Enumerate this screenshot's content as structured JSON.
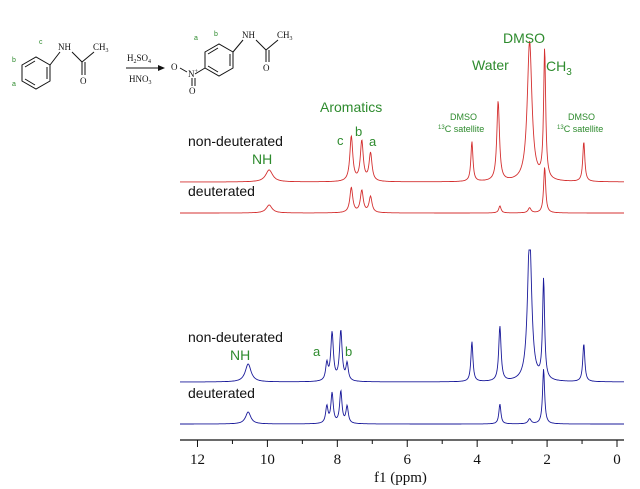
{
  "scheme": {
    "reagent_top": "H",
    "reagent_top_sub": "2",
    "reagent_top_main": "SO",
    "reagent_top_sub2": "4",
    "reagent_bottom_main": "HNO",
    "reagent_bottom_sub": "3",
    "reactant_nh": "NH",
    "reactant_ch3": "CH",
    "reactant_ch3_sub": "3",
    "reactant_o": "O",
    "product_nh": "NH",
    "product_ch3": "CH",
    "product_ch3_sub": "3",
    "product_o": "O",
    "product_no2_o": "O",
    "product_no2_n": "N",
    "product_no2_plus": "+",
    "product_no2_o2": "O",
    "label_a": "a",
    "label_b": "b",
    "label_c": "c"
  },
  "chart_data": {
    "type": "line",
    "xlabel": "f1 (ppm)",
    "xlim": [
      12.5,
      -0.2
    ],
    "x_reversed": true,
    "xticks": [
      12,
      10,
      8,
      6,
      4,
      2,
      0
    ],
    "grid": false,
    "colors": {
      "acetanilide": "#d43030",
      "nitroacetanilide": "#1a1a9a"
    },
    "panels": [
      {
        "compound": "acetanilide",
        "traces": [
          {
            "name": "non-deuterated",
            "peaks": [
              {
                "ppm": 9.95,
                "height": 12,
                "width": 0.12
              },
              {
                "ppm": 7.6,
                "height": 45,
                "width": 0.05
              },
              {
                "ppm": 7.3,
                "height": 40,
                "width": 0.05
              },
              {
                "ppm": 7.05,
                "height": 28,
                "width": 0.05
              },
              {
                "ppm": 4.15,
                "height": 40,
                "width": 0.035
              },
              {
                "ppm": 3.4,
                "height": 80,
                "width": 0.045
              },
              {
                "ppm": 2.5,
                "height": 140,
                "width": 0.08
              },
              {
                "ppm": 2.07,
                "height": 130,
                "width": 0.035
              },
              {
                "ppm": 0.95,
                "height": 40,
                "width": 0.035
              }
            ]
          },
          {
            "name": "deuterated",
            "peaks": [
              {
                "ppm": 9.95,
                "height": 8,
                "width": 0.1
              },
              {
                "ppm": 7.6,
                "height": 25,
                "width": 0.05
              },
              {
                "ppm": 7.3,
                "height": 22,
                "width": 0.05
              },
              {
                "ppm": 7.05,
                "height": 16,
                "width": 0.05
              },
              {
                "ppm": 3.35,
                "height": 7,
                "width": 0.04
              },
              {
                "ppm": 2.5,
                "height": 5,
                "width": 0.05
              },
              {
                "ppm": 2.07,
                "height": 46,
                "width": 0.035
              }
            ]
          }
        ],
        "annotations": {
          "trace_labels": [
            "non-deuterated",
            "deuterated"
          ],
          "peak_labels": [
            {
              "text": "NH",
              "ppm": 9.95
            },
            {
              "text": "Aromatics",
              "ppm": 7.35
            },
            {
              "text": "c",
              "ppm": 7.7
            },
            {
              "text": "b",
              "ppm": 7.3
            },
            {
              "text": "a",
              "ppm": 6.95
            },
            {
              "text": "DMSO",
              "ppm": 4.15,
              "sup": "13",
              "line2": "C satellite"
            },
            {
              "text": "Water",
              "ppm": 3.4
            },
            {
              "text": "DMSO",
              "ppm": 2.5
            },
            {
              "text": "CH",
              "sub": "3",
              "ppm": 1.95
            },
            {
              "text": "DMSO",
              "ppm": 0.95,
              "sup": "13",
              "line2": "C satellite"
            }
          ]
        }
      },
      {
        "compound": "nitroacetanilide",
        "traces": [
          {
            "name": "non-deuterated",
            "peaks": [
              {
                "ppm": 10.55,
                "height": 18,
                "width": 0.1
              },
              {
                "ppm": 8.3,
                "height": 17,
                "width": 0.04
              },
              {
                "ppm": 8.15,
                "height": 48,
                "width": 0.045
              },
              {
                "ppm": 7.9,
                "height": 50,
                "width": 0.045
              },
              {
                "ppm": 7.72,
                "height": 17,
                "width": 0.04
              },
              {
                "ppm": 4.15,
                "height": 40,
                "width": 0.035
              },
              {
                "ppm": 3.35,
                "height": 55,
                "width": 0.04
              },
              {
                "ppm": 2.5,
                "height": 150,
                "width": 0.07
              },
              {
                "ppm": 2.1,
                "height": 100,
                "width": 0.035
              },
              {
                "ppm": 0.95,
                "height": 38,
                "width": 0.035
              }
            ]
          },
          {
            "name": "deuterated",
            "peaks": [
              {
                "ppm": 10.55,
                "height": 12,
                "width": 0.09
              },
              {
                "ppm": 8.3,
                "height": 17,
                "width": 0.04
              },
              {
                "ppm": 8.15,
                "height": 30,
                "width": 0.04
              },
              {
                "ppm": 7.9,
                "height": 32,
                "width": 0.04
              },
              {
                "ppm": 7.72,
                "height": 17,
                "width": 0.04
              },
              {
                "ppm": 3.35,
                "height": 20,
                "width": 0.035
              },
              {
                "ppm": 2.5,
                "height": 5,
                "width": 0.05
              },
              {
                "ppm": 2.1,
                "height": 55,
                "width": 0.035
              }
            ]
          }
        ],
        "annotations": {
          "trace_labels": [
            "non-deuterated",
            "deuterated"
          ],
          "peak_labels": [
            {
              "text": "NH",
              "ppm": 10.55
            },
            {
              "text": "a",
              "ppm": 8.3
            },
            {
              "text": "b",
              "ppm": 7.65
            }
          ]
        }
      }
    ]
  }
}
